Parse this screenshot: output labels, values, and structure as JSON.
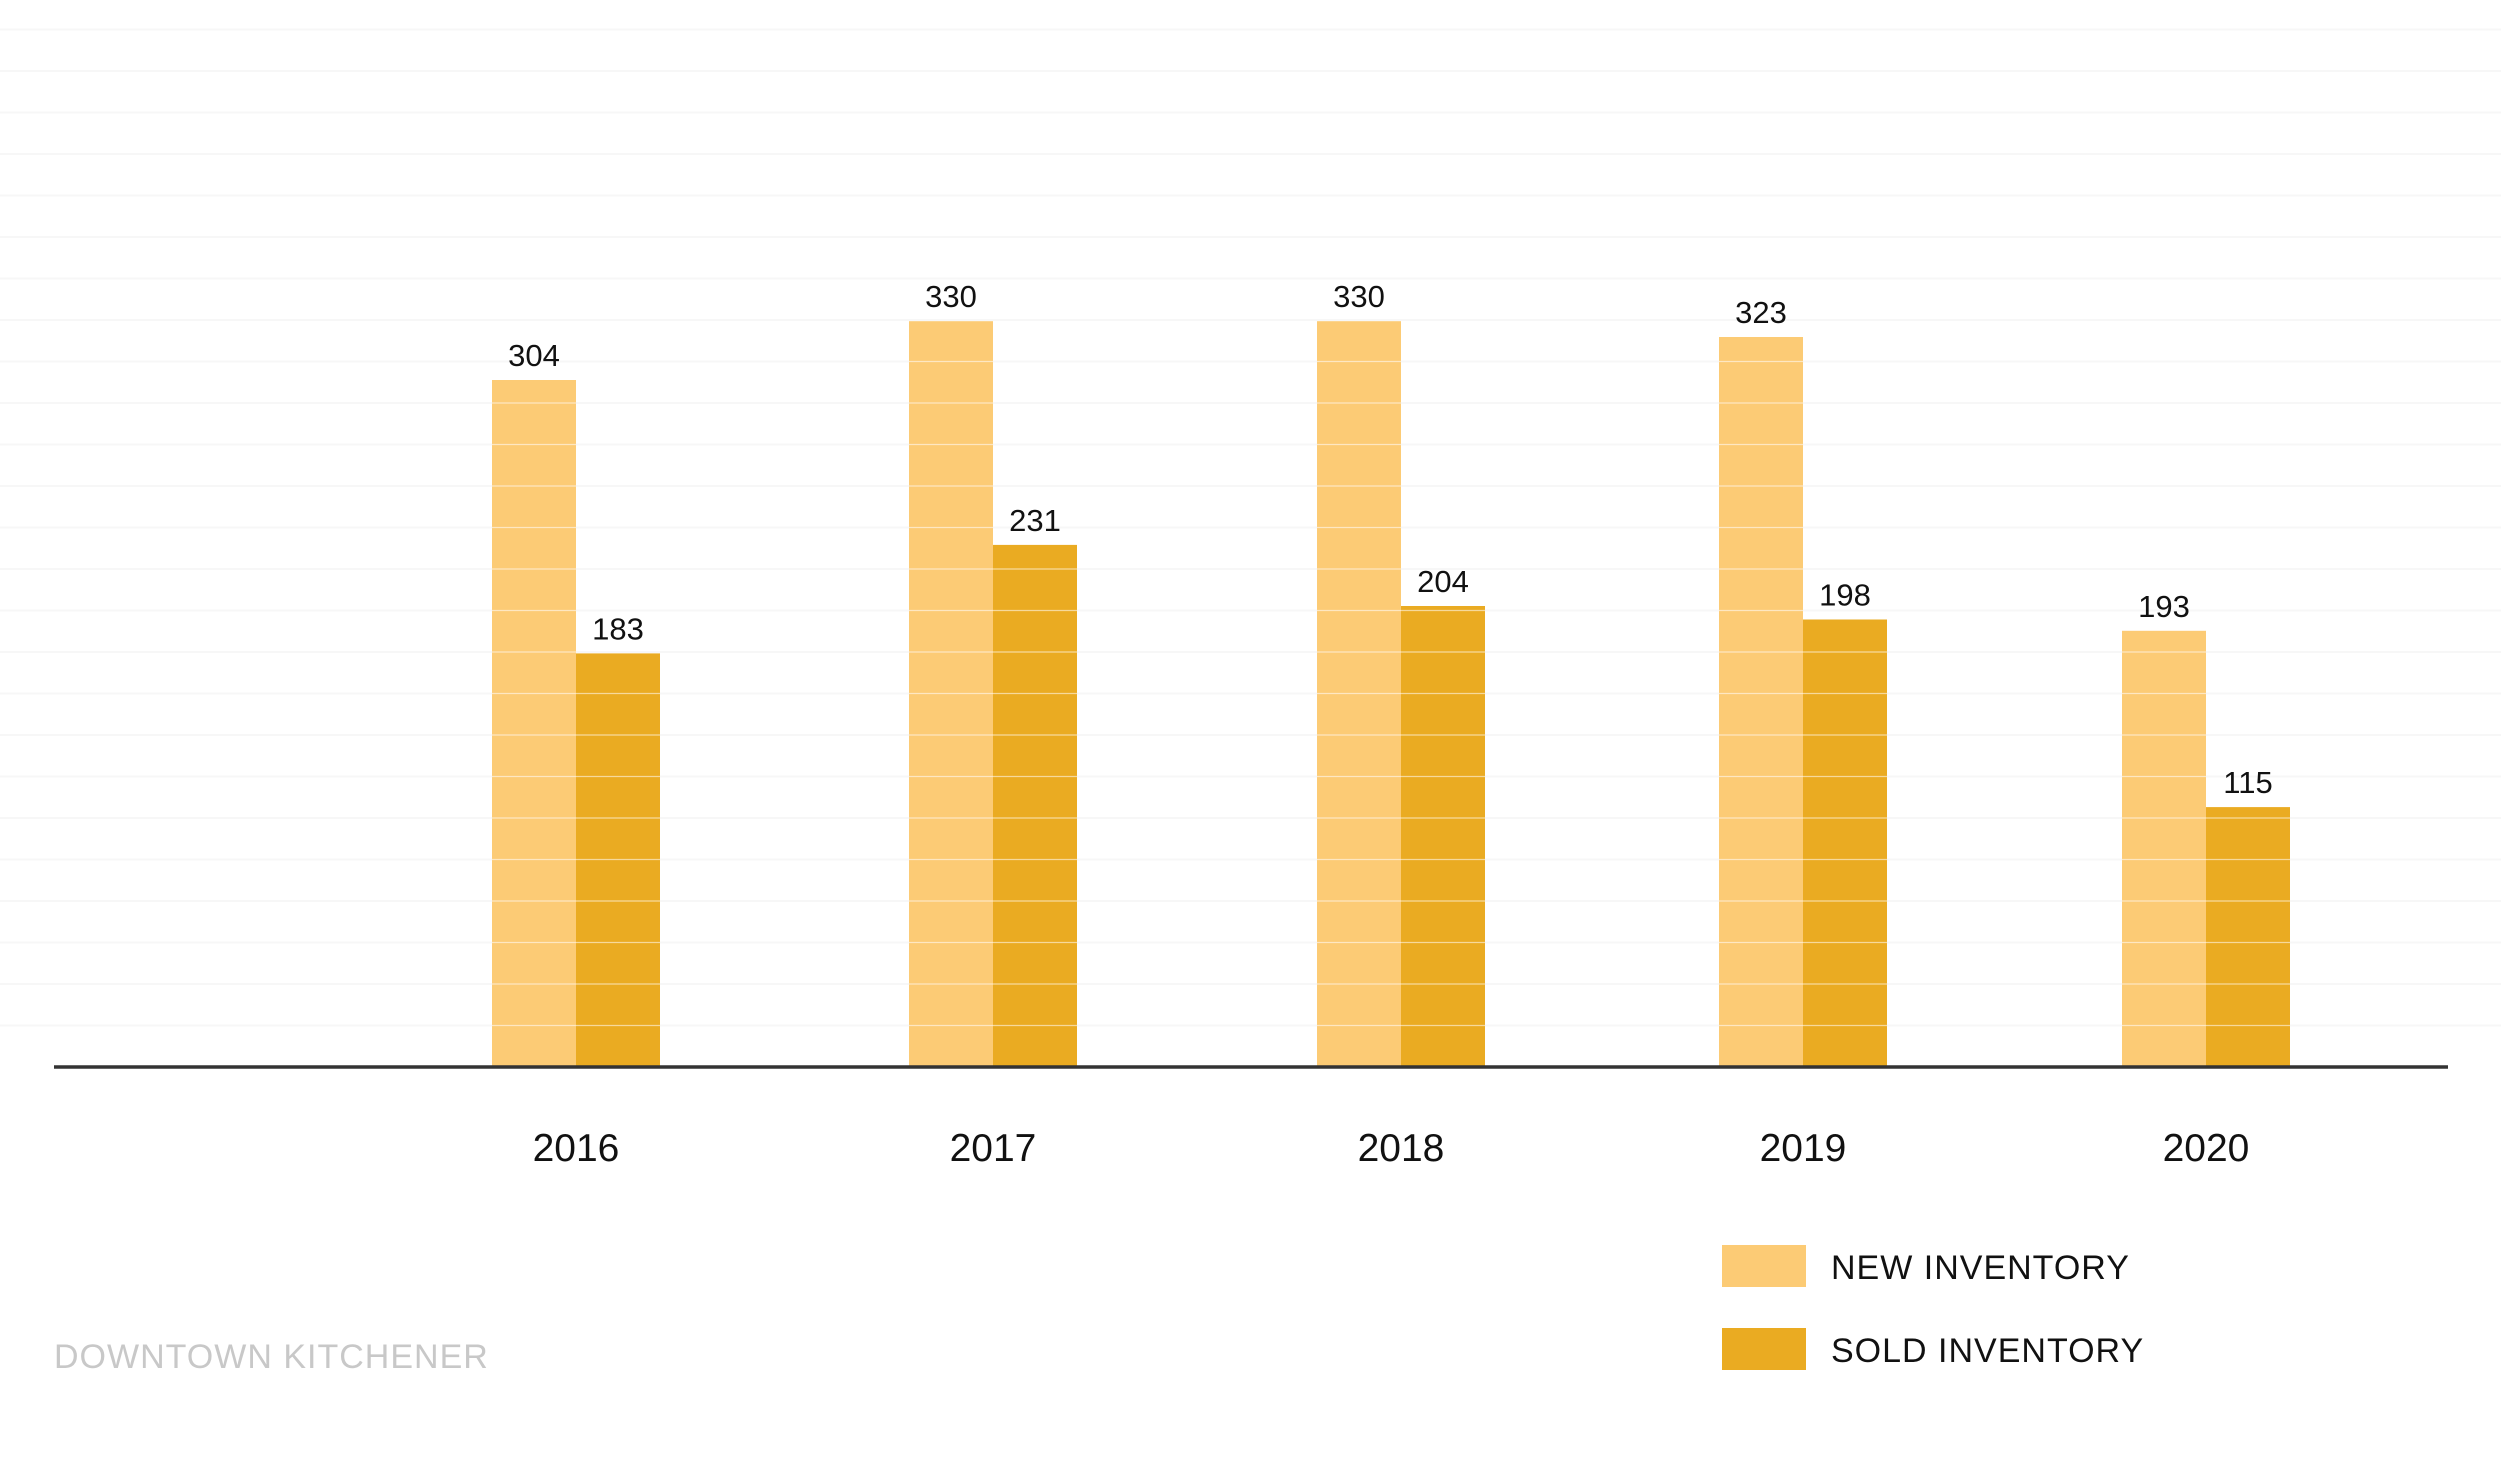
{
  "footer": {
    "label": "DOWNTOWN KITCHENER"
  },
  "colors": {
    "new_inventory": "#fccb75",
    "sold_inventory": "#eaab22",
    "axis": "#333333",
    "gridline": "#eeeeee",
    "text": "#111111"
  },
  "chart_data": {
    "type": "bar",
    "title": "",
    "xlabel": "",
    "ylabel": "",
    "categories": [
      "2016",
      "2017",
      "2018",
      "2019",
      "2020"
    ],
    "series": [
      {
        "name": "NEW INVENTORY",
        "values": [
          304,
          330,
          330,
          323,
          193
        ],
        "color": "#fccb75"
      },
      {
        "name": "SOLD INVENTORY",
        "values": [
          183,
          231,
          204,
          198,
          115
        ],
        "color": "#eaab22"
      }
    ],
    "ylim": [
      0,
      480
    ],
    "grid": true,
    "data_labels": true,
    "legend": "bottom-right"
  }
}
